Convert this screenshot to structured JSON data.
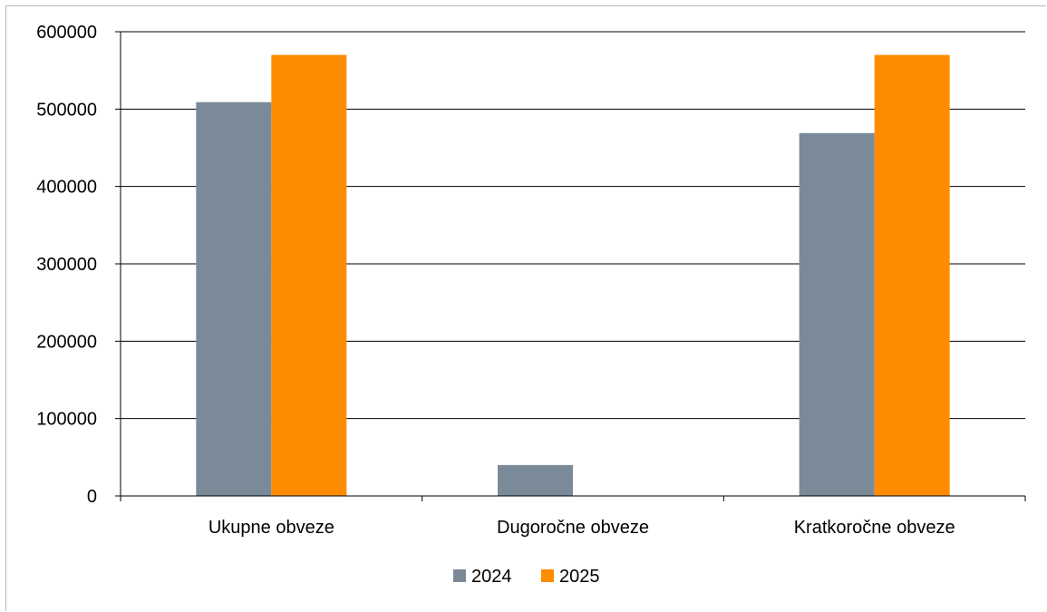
{
  "chart_data": {
    "type": "bar",
    "title": "",
    "xlabel": "",
    "ylabel": "",
    "categories": [
      "Ukupne obveze",
      "Dugoročne obveze",
      "Kratkoročne obveze"
    ],
    "series": [
      {
        "name": "2024",
        "color": "#7a8a99",
        "values": [
          509000,
          40000,
          469000
        ]
      },
      {
        "name": "2025",
        "color": "#ff8c00",
        "values": [
          570000,
          0,
          570000
        ]
      }
    ],
    "ylim": [
      0,
      600000
    ],
    "yticks": [
      "0",
      "100000",
      "200000",
      "300000",
      "400000",
      "500000",
      "600000"
    ],
    "grid": true,
    "legend_position": "bottom"
  }
}
